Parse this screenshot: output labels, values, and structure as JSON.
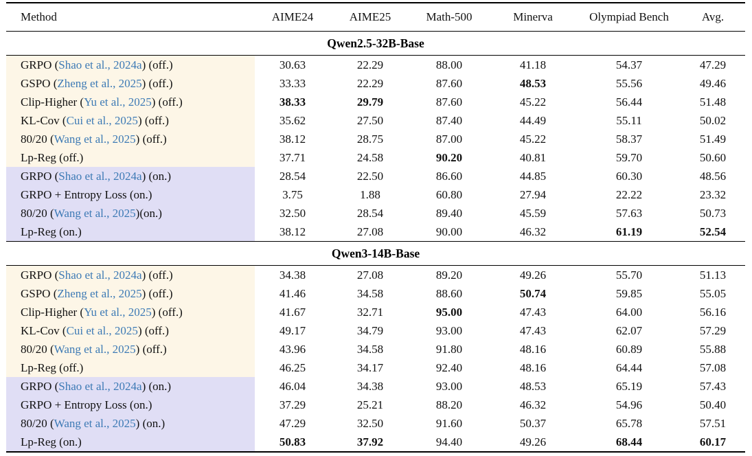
{
  "table": {
    "columns": [
      "Method",
      "AIME24",
      "AIME25",
      "Math-500",
      "Minerva",
      "Olympiad Bench",
      "Avg."
    ],
    "colors": {
      "off_policy_row_bg": "#fdf6e7",
      "on_policy_row_bg": "#e0def5",
      "citation_blue": "#3d7ab5",
      "rule_color": "#000000"
    },
    "sections": [
      {
        "title": "Qwen2.5-32B-Base",
        "rows": [
          {
            "policy": "off",
            "method": [
              {
                "t": "GRPO ("
              },
              {
                "t": "Shao et al., 2024a",
                "cite": true
              },
              {
                "t": ") (off.)"
              }
            ],
            "values": [
              "30.63",
              "22.29",
              "88.00",
              "41.18",
              "54.37",
              "47.29"
            ],
            "bold": []
          },
          {
            "policy": "off",
            "method": [
              {
                "t": "GSPO ("
              },
              {
                "t": "Zheng et al., 2025",
                "cite": true
              },
              {
                "t": ") (off.)"
              }
            ],
            "values": [
              "33.33",
              "22.29",
              "87.60",
              "48.53",
              "55.56",
              "49.46"
            ],
            "bold": [
              3
            ]
          },
          {
            "policy": "off",
            "method": [
              {
                "t": "Clip-Higher ("
              },
              {
                "t": "Yu et al., 2025",
                "cite": true
              },
              {
                "t": ") (off.)"
              }
            ],
            "values": [
              "38.33",
              "29.79",
              "87.60",
              "45.22",
              "56.44",
              "51.48"
            ],
            "bold": [
              0,
              1
            ]
          },
          {
            "policy": "off",
            "method": [
              {
                "t": "KL-Cov ("
              },
              {
                "t": "Cui et al., 2025",
                "cite": true
              },
              {
                "t": ") (off.)"
              }
            ],
            "values": [
              "35.62",
              "27.50",
              "87.40",
              "44.49",
              "55.11",
              "50.02"
            ],
            "bold": []
          },
          {
            "policy": "off",
            "method": [
              {
                "t": "80/20 ("
              },
              {
                "t": "Wang et al., 2025",
                "cite": true
              },
              {
                "t": ") (off.)"
              }
            ],
            "values": [
              "38.12",
              "28.75",
              "87.00",
              "45.22",
              "58.37",
              "51.49"
            ],
            "bold": []
          },
          {
            "policy": "off",
            "method": [
              {
                "t": "Lp-Reg (off.)"
              }
            ],
            "values": [
              "37.71",
              "24.58",
              "90.20",
              "40.81",
              "59.70",
              "50.60"
            ],
            "bold": [
              2
            ]
          },
          {
            "policy": "on",
            "method": [
              {
                "t": "GRPO ("
              },
              {
                "t": "Shao et al., 2024a",
                "cite": true
              },
              {
                "t": ") (on.)"
              }
            ],
            "values": [
              "28.54",
              "22.50",
              "86.60",
              "44.85",
              "60.30",
              "48.56"
            ],
            "bold": []
          },
          {
            "policy": "on",
            "method": [
              {
                "t": "GRPO + Entropy Loss (on.)"
              }
            ],
            "values": [
              "3.75",
              "1.88",
              "60.80",
              "27.94",
              "22.22",
              "23.32"
            ],
            "bold": []
          },
          {
            "policy": "on",
            "method": [
              {
                "t": "80/20 ("
              },
              {
                "t": "Wang et al., 2025",
                "cite": true
              },
              {
                "t": ")(on.)"
              }
            ],
            "values": [
              "32.50",
              "28.54",
              "89.40",
              "45.59",
              "57.63",
              "50.73"
            ],
            "bold": []
          },
          {
            "policy": "on",
            "method": [
              {
                "t": "Lp-Reg (on.)"
              }
            ],
            "values": [
              "38.12",
              "27.08",
              "90.00",
              "46.32",
              "61.19",
              "52.54"
            ],
            "bold": [
              4,
              5
            ]
          }
        ]
      },
      {
        "title": "Qwen3-14B-Base",
        "rows": [
          {
            "policy": "off",
            "method": [
              {
                "t": "GRPO ("
              },
              {
                "t": "Shao et al., 2024a",
                "cite": true
              },
              {
                "t": ") (off.)"
              }
            ],
            "values": [
              "34.38",
              "27.08",
              "89.20",
              "49.26",
              "55.70",
              "51.13"
            ],
            "bold": []
          },
          {
            "policy": "off",
            "method": [
              {
                "t": "GSPO ("
              },
              {
                "t": "Zheng et al., 2025",
                "cite": true
              },
              {
                "t": ") (off.)"
              }
            ],
            "values": [
              "41.46",
              "34.58",
              "88.60",
              "50.74",
              "59.85",
              "55.05"
            ],
            "bold": [
              3
            ]
          },
          {
            "policy": "off",
            "method": [
              {
                "t": "Clip-Higher ("
              },
              {
                "t": "Yu et al., 2025",
                "cite": true
              },
              {
                "t": ") (off.)"
              }
            ],
            "values": [
              "41.67",
              "32.71",
              "95.00",
              "47.43",
              "64.00",
              "56.16"
            ],
            "bold": [
              2
            ]
          },
          {
            "policy": "off",
            "method": [
              {
                "t": "KL-Cov ("
              },
              {
                "t": "Cui et al., 2025",
                "cite": true
              },
              {
                "t": ") (off.)"
              }
            ],
            "values": [
              "49.17",
              "34.79",
              "93.00",
              "47.43",
              "62.07",
              "57.29"
            ],
            "bold": []
          },
          {
            "policy": "off",
            "method": [
              {
                "t": "80/20 ("
              },
              {
                "t": "Wang et al., 2025",
                "cite": true
              },
              {
                "t": ") (off.)"
              }
            ],
            "values": [
              "43.96",
              "34.58",
              "91.80",
              "48.16",
              "60.89",
              "55.88"
            ],
            "bold": []
          },
          {
            "policy": "off",
            "method": [
              {
                "t": "Lp-Reg (off.)"
              }
            ],
            "values": [
              "46.25",
              "34.17",
              "92.40",
              "48.16",
              "64.44",
              "57.08"
            ],
            "bold": []
          },
          {
            "policy": "on",
            "method": [
              {
                "t": "GRPO ("
              },
              {
                "t": "Shao et al., 2024a",
                "cite": true
              },
              {
                "t": ") (on.)"
              }
            ],
            "values": [
              "46.04",
              "34.38",
              "93.00",
              "48.53",
              "65.19",
              "57.43"
            ],
            "bold": []
          },
          {
            "policy": "on",
            "method": [
              {
                "t": "GRPO + Entropy Loss (on.)"
              }
            ],
            "values": [
              "37.29",
              "25.21",
              "88.20",
              "46.32",
              "54.96",
              "50.40"
            ],
            "bold": []
          },
          {
            "policy": "on",
            "method": [
              {
                "t": "80/20 ("
              },
              {
                "t": "Wang et al., 2025",
                "cite": true
              },
              {
                "t": ") (on.)"
              }
            ],
            "values": [
              "47.29",
              "32.50",
              "91.60",
              "50.37",
              "65.78",
              "57.51"
            ],
            "bold": []
          },
          {
            "policy": "on",
            "method": [
              {
                "t": "Lp-Reg (on.)"
              }
            ],
            "values": [
              "50.83",
              "37.92",
              "94.40",
              "49.26",
              "68.44",
              "60.17"
            ],
            "bold": [
              0,
              1,
              4,
              5
            ]
          }
        ]
      }
    ]
  }
}
